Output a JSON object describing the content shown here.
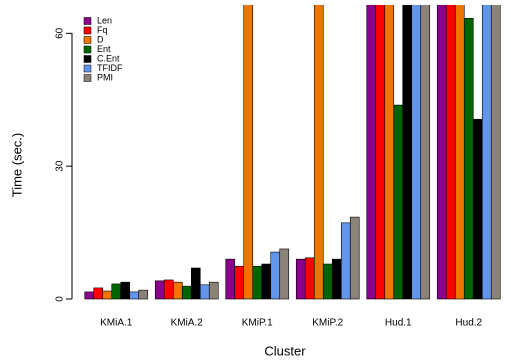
{
  "chart_data": {
    "type": "bar",
    "x_label": "Cluster",
    "y_label": "Time (sec.)",
    "categories": [
      "KMiA.1",
      "KMiA.2",
      "KMiP.1",
      "KMiP.2",
      "Hud.1",
      "Hud.2"
    ],
    "series": [
      {
        "name": "Len",
        "color": "#8b008b",
        "values": [
          1.6,
          4.1,
          9.0,
          9.0,
          70,
          70
        ]
      },
      {
        "name": "Fq",
        "color": "#ff0000",
        "values": [
          2.5,
          4.3,
          7.4,
          9.3,
          70,
          70
        ]
      },
      {
        "name": "D",
        "color": "#ee7600",
        "values": [
          1.8,
          3.8,
          70,
          70,
          70,
          70
        ]
      },
      {
        "name": "Ent",
        "color": "#006400",
        "values": [
          3.4,
          2.9,
          7.4,
          7.9,
          43.8,
          63.4
        ]
      },
      {
        "name": "C.Ent",
        "color": "#000000",
        "values": [
          3.8,
          7.0,
          7.9,
          9.0,
          70,
          40.6
        ]
      },
      {
        "name": "TFIDF",
        "color": "#6495ed",
        "values": [
          1.6,
          3.2,
          10.6,
          17.2,
          70,
          70
        ]
      },
      {
        "name": "PMI",
        "color": "#8b8378",
        "values": [
          2.0,
          3.8,
          11.3,
          18.5,
          70,
          70
        ]
      }
    ],
    "ylim": [
      0,
      66.4
    ],
    "yticks": [
      0,
      30,
      60
    ],
    "legend": "top-left"
  }
}
